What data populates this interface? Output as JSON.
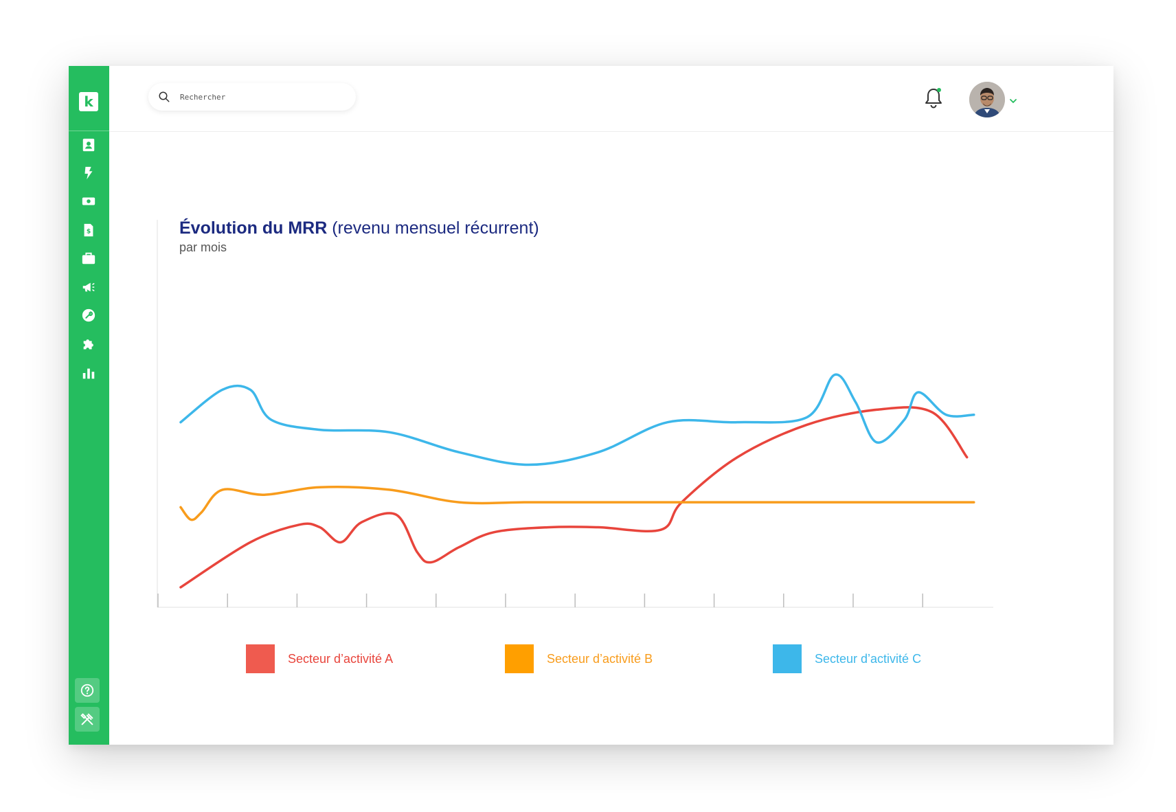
{
  "app": {
    "logo_letter": "k",
    "accent_color": "#25bd5f"
  },
  "sidebar": {
    "items": [
      {
        "icon": "contacts-icon"
      },
      {
        "icon": "lightning-icon"
      },
      {
        "icon": "money-icon"
      },
      {
        "icon": "invoice-icon"
      },
      {
        "icon": "briefcase-icon"
      },
      {
        "icon": "megaphone-icon"
      },
      {
        "icon": "wrench-icon"
      },
      {
        "icon": "puzzle-icon"
      },
      {
        "icon": "bar-chart-icon"
      }
    ],
    "bottom_items": [
      {
        "icon": "help-icon"
      },
      {
        "icon": "tools-icon"
      }
    ]
  },
  "header": {
    "search_placeholder": "Rechercher",
    "notification_dot": true
  },
  "chart_data": {
    "type": "line",
    "title_bold": "Évolution du MRR",
    "title_rest": " (revenu mensuel récurrent)",
    "subtitle": "par mois",
    "x_tick_count": 12,
    "series": [
      {
        "name": "Secteur d’activité A",
        "color": "#e8453c",
        "values": [
          [
            0.0,
            8
          ],
          [
            1.0,
            26
          ],
          [
            1.7,
            33
          ],
          [
            2.0,
            32
          ],
          [
            2.3,
            26
          ],
          [
            2.6,
            34
          ],
          [
            3.1,
            37
          ],
          [
            3.4,
            22
          ],
          [
            3.6,
            18
          ],
          [
            4.0,
            24
          ],
          [
            4.5,
            30
          ],
          [
            5.3,
            32
          ],
          [
            6.0,
            32
          ],
          [
            6.9,
            31
          ],
          [
            7.2,
            42
          ],
          [
            8.0,
            60
          ],
          [
            9.0,
            73
          ],
          [
            10.0,
            79
          ],
          [
            10.8,
            78
          ],
          [
            11.3,
            60
          ]
        ]
      },
      {
        "name": "Secteur d’activité B",
        "color": "#f89c1c",
        "values": [
          [
            0.0,
            40
          ],
          [
            0.15,
            35
          ],
          [
            0.3,
            38
          ],
          [
            0.6,
            47
          ],
          [
            1.2,
            45
          ],
          [
            2.0,
            48
          ],
          [
            3.0,
            47
          ],
          [
            4.0,
            42
          ],
          [
            5.0,
            42
          ],
          [
            6.0,
            42
          ],
          [
            7.0,
            42
          ],
          [
            8.0,
            42
          ],
          [
            9.0,
            42
          ],
          [
            10.0,
            42
          ],
          [
            11.0,
            42
          ],
          [
            11.4,
            42
          ]
        ]
      },
      {
        "name": "Secteur d’activité C",
        "color": "#3db7ea",
        "values": [
          [
            0.0,
            74
          ],
          [
            0.6,
            87
          ],
          [
            1.0,
            87
          ],
          [
            1.3,
            75
          ],
          [
            2.0,
            71
          ],
          [
            3.0,
            70
          ],
          [
            4.0,
            62
          ],
          [
            5.0,
            57
          ],
          [
            6.0,
            62
          ],
          [
            7.0,
            74
          ],
          [
            8.0,
            74
          ],
          [
            9.0,
            76
          ],
          [
            9.4,
            93
          ],
          [
            9.7,
            82
          ],
          [
            10.0,
            66
          ],
          [
            10.4,
            75
          ],
          [
            10.6,
            86
          ],
          [
            11.0,
            77
          ],
          [
            11.4,
            77
          ]
        ]
      }
    ],
    "legend_position": "bottom",
    "grid": false
  }
}
